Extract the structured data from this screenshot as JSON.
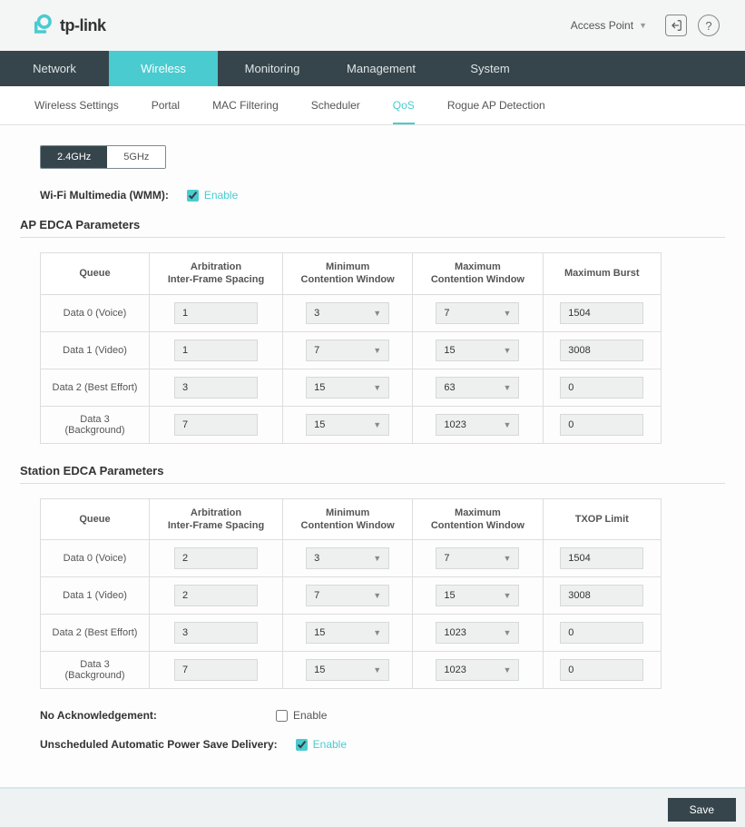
{
  "header": {
    "brand": "tp-link",
    "mode_label": "Access Point"
  },
  "main_nav": [
    "Network",
    "Wireless",
    "Monitoring",
    "Management",
    "System"
  ],
  "main_nav_active": 1,
  "sub_nav": [
    "Wireless Settings",
    "Portal",
    "MAC Filtering",
    "Scheduler",
    "QoS",
    "Rogue AP Detection"
  ],
  "sub_nav_active": 4,
  "bands": [
    "2.4GHz",
    "5GHz"
  ],
  "band_active": 0,
  "wmm": {
    "label": "Wi-Fi Multimedia (WMM):",
    "enable_text": "Enable",
    "checked": true
  },
  "ap_edca": {
    "title": "AP EDCA Parameters",
    "headers": [
      "Queue",
      "Arbitration\nInter-Frame Spacing",
      "Minimum\nContention Window",
      "Maximum\nContention Window",
      "Maximum Burst"
    ],
    "rows": [
      {
        "queue": "Data 0 (Voice)",
        "aifs": "1",
        "cwmin": "3",
        "cwmax": "7",
        "last": "1504"
      },
      {
        "queue": "Data 1 (Video)",
        "aifs": "1",
        "cwmin": "7",
        "cwmax": "15",
        "last": "3008"
      },
      {
        "queue": "Data 2 (Best Effort)",
        "aifs": "3",
        "cwmin": "15",
        "cwmax": "63",
        "last": "0"
      },
      {
        "queue": "Data 3 (Background)",
        "aifs": "7",
        "cwmin": "15",
        "cwmax": "1023",
        "last": "0"
      }
    ]
  },
  "station_edca": {
    "title": "Station EDCA Parameters",
    "headers": [
      "Queue",
      "Arbitration\nInter-Frame Spacing",
      "Minimum\nContention Window",
      "Maximum\nContention Window",
      "TXOP Limit"
    ],
    "rows": [
      {
        "queue": "Data 0 (Voice)",
        "aifs": "2",
        "cwmin": "3",
        "cwmax": "7",
        "last": "1504"
      },
      {
        "queue": "Data 1 (Video)",
        "aifs": "2",
        "cwmin": "7",
        "cwmax": "15",
        "last": "3008"
      },
      {
        "queue": "Data 2 (Best Effort)",
        "aifs": "3",
        "cwmin": "15",
        "cwmax": "1023",
        "last": "0"
      },
      {
        "queue": "Data 3 (Background)",
        "aifs": "7",
        "cwmin": "15",
        "cwmax": "1023",
        "last": "0"
      }
    ]
  },
  "no_ack": {
    "label": "No Acknowledgement:",
    "enable_text": "Enable",
    "checked": false
  },
  "uapsd": {
    "label": "Unscheduled Automatic Power Save Delivery:",
    "enable_text": "Enable",
    "checked": true
  },
  "save_label": "Save",
  "colors": {
    "accent": "#4acbd0",
    "nav_bg": "#36454c",
    "border": "#dddddd",
    "input_bg": "#eef0f0"
  }
}
